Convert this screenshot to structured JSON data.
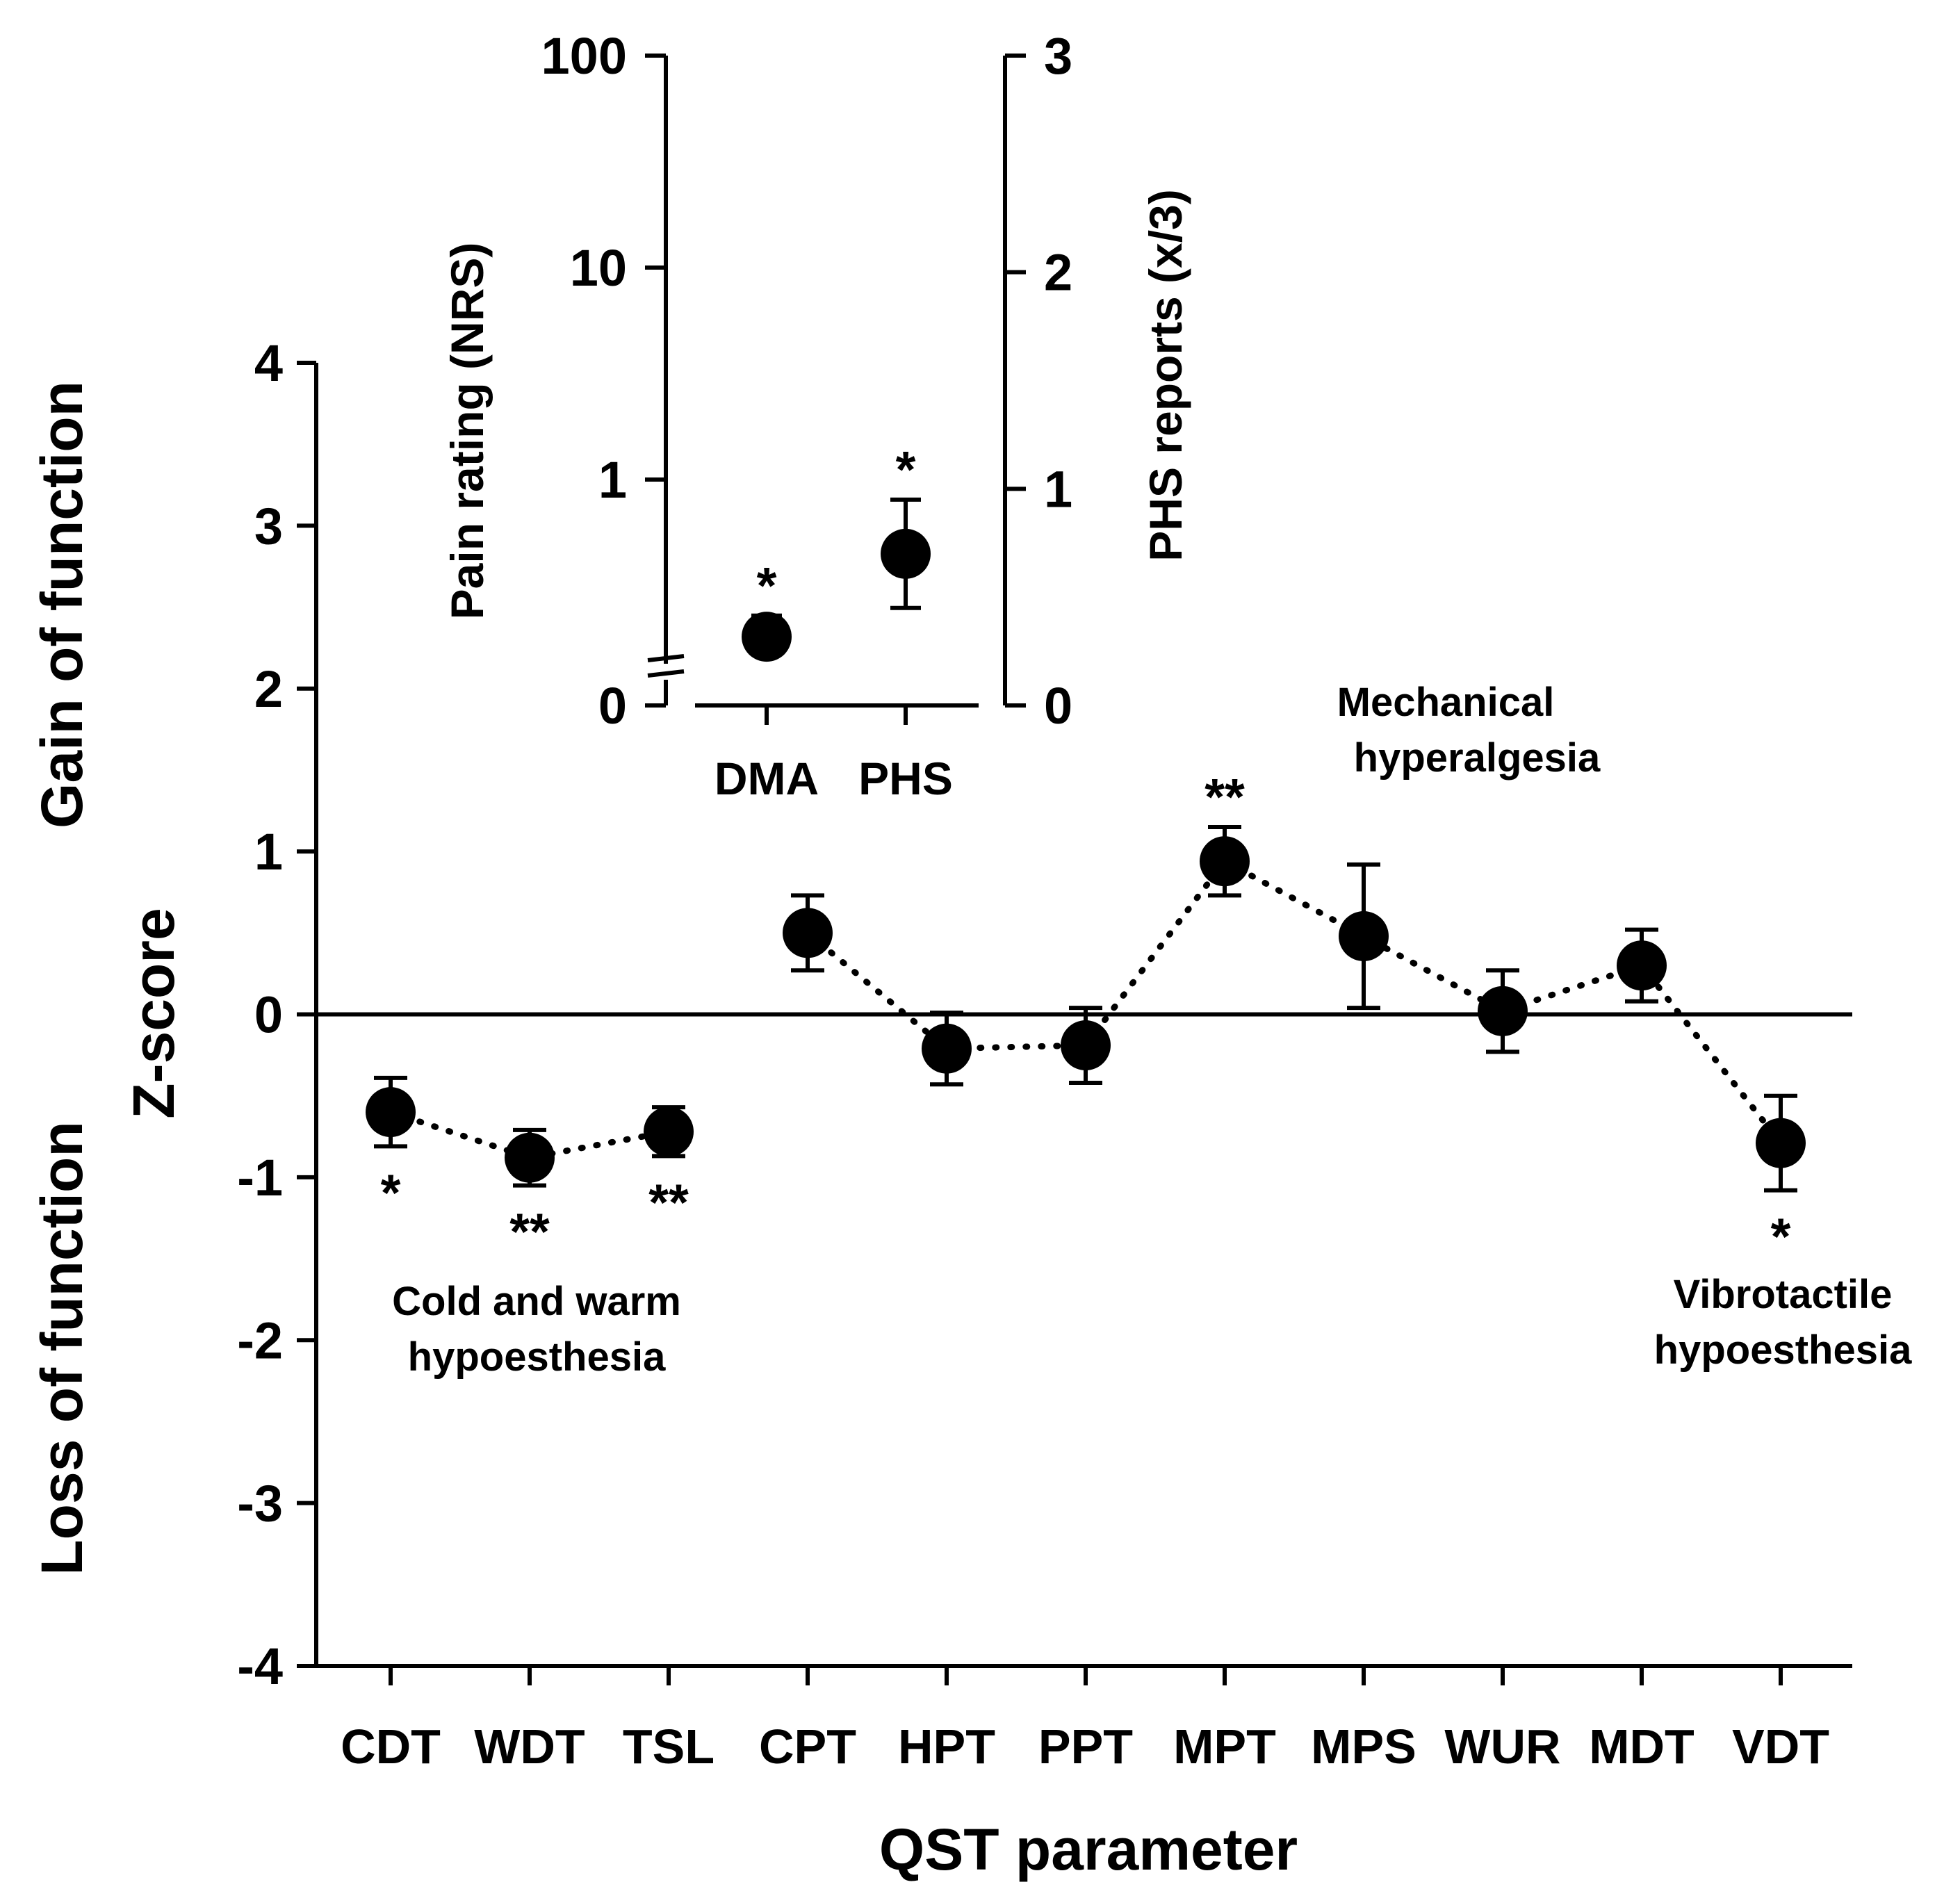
{
  "chart_data": [
    {
      "type": "scatter",
      "title": "",
      "xlabel": "QST parameter",
      "ylabel": "Z-score",
      "ylabel_top": "Gain of function",
      "ylabel_bottom": "Loss of function",
      "ylim": [
        -4,
        4
      ],
      "yticks": [
        "4",
        "3",
        "2",
        "1",
        "0",
        "-1",
        "-2",
        "-3",
        "-4"
      ],
      "categories": [
        "CDT",
        "WDT",
        "TSL",
        "CPT",
        "HPT",
        "PPT",
        "MPT",
        "MPS",
        "WUR",
        "MDT",
        "VDT"
      ],
      "values": [
        -0.6,
        -0.88,
        -0.72,
        0.5,
        -0.21,
        -0.19,
        0.94,
        0.48,
        0.02,
        0.3,
        -0.79
      ],
      "error": [
        0.21,
        0.17,
        0.15,
        0.23,
        0.22,
        0.23,
        0.21,
        0.44,
        0.25,
        0.22,
        0.29
      ],
      "significance": [
        "*",
        "**",
        "**",
        "",
        "",
        "",
        "**",
        "",
        "",
        "",
        "*"
      ],
      "annotations": [
        {
          "line1": "Cold and warm",
          "line2": "hypoesthesia"
        },
        {
          "line1": "Mechanical",
          "line2": "hyperalgesia"
        },
        {
          "line1": "Vibrotactile",
          "line2": "hypoesthesia"
        }
      ]
    },
    {
      "type": "scatter",
      "title": "",
      "categories": [
        "DMA",
        "PHS"
      ],
      "left_axis": {
        "label": "Pain rating (NRS)",
        "scale": "log",
        "ticks": [
          "100",
          "10",
          "1",
          "0"
        ]
      },
      "right_axis": {
        "label": "PHS reports (x/3)",
        "ticks": [
          "3",
          "2",
          "1",
          "0"
        ],
        "ylim": [
          0,
          3
        ]
      },
      "points": [
        {
          "category": "DMA",
          "axis": "left",
          "value": 0.33,
          "err_low": 0.27,
          "err_high": 0.42,
          "significance": "*"
        },
        {
          "category": "PHS",
          "axis": "right",
          "value": 0.7,
          "err_low": 0.45,
          "err_high": 0.95,
          "significance": "*"
        }
      ]
    }
  ]
}
